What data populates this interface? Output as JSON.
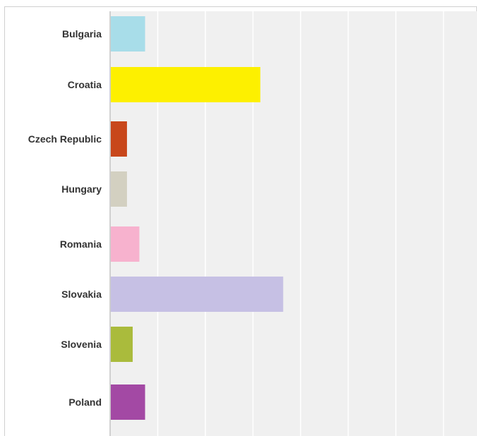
{
  "chart_data": {
    "type": "bar",
    "orientation": "horizontal",
    "categories": [
      "Bulgaria",
      "Croatia",
      "Czech Republic",
      "Hungary",
      "Romania",
      "Slovakia",
      "Slovenia",
      "Poland"
    ],
    "values": [
      3.6,
      15.7,
      1.7,
      1.7,
      3.0,
      18.1,
      2.3,
      3.6
    ],
    "colors": [
      "#a8dde9",
      "#fdf000",
      "#c8471b",
      "#d3d0c1",
      "#f7b2ce",
      "#c6c0e4",
      "#aabb3c",
      "#a349a4"
    ],
    "xlim": [
      0,
      35
    ],
    "gridlines": [
      0,
      5,
      10,
      15,
      20,
      25,
      30,
      35
    ],
    "grid": true,
    "plot_background": "#f0f0f0",
    "gridline_color": "#ffffff",
    "title": "",
    "xlabel": "",
    "ylabel": ""
  }
}
